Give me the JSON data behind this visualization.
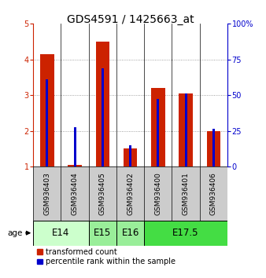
{
  "title": "GDS4591 / 1425663_at",
  "samples": [
    "GSM936403",
    "GSM936404",
    "GSM936405",
    "GSM936402",
    "GSM936400",
    "GSM936401",
    "GSM936406"
  ],
  "red_values": [
    4.15,
    1.05,
    4.5,
    1.5,
    3.2,
    3.05,
    2.0
  ],
  "blue_values": [
    3.45,
    2.1,
    3.75,
    1.6,
    2.9,
    3.05,
    2.05
  ],
  "red_base": 1.0,
  "ylim": [
    1,
    5
  ],
  "yticks_left": [
    1,
    2,
    3,
    4,
    5
  ],
  "yticks_right": [
    0,
    25,
    50,
    75,
    100
  ],
  "ylabel_left_color": "#cc2200",
  "ylabel_right_color": "#0000cc",
  "age_groups": [
    {
      "label": "E14",
      "start": 0,
      "end": 2,
      "color": "#ccffcc"
    },
    {
      "label": "E15",
      "start": 2,
      "end": 3,
      "color": "#99ee99"
    },
    {
      "label": "E16",
      "start": 3,
      "end": 4,
      "color": "#99ee99"
    },
    {
      "label": "E17.5",
      "start": 4,
      "end": 7,
      "color": "#44dd44"
    }
  ],
  "red_color": "#cc2200",
  "blue_color": "#0000cc",
  "bar_width": 0.5,
  "blue_bar_width": 0.08,
  "grid_color": "#555555",
  "bg_color": "#ffffff",
  "sample_bg": "#cccccc",
  "legend_red": "transformed count",
  "legend_blue": "percentile rank within the sample",
  "title_fontsize": 10,
  "tick_fontsize": 7,
  "age_label_fontsize": 8.5,
  "sample_fontsize": 6.5
}
